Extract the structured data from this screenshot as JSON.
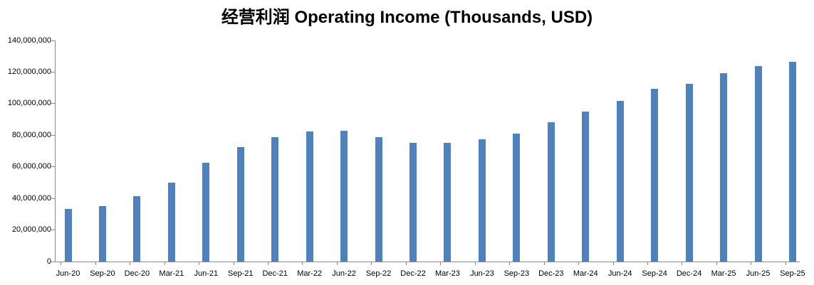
{
  "chart_data": {
    "type": "bar",
    "title": "经营利润 Operating Income (Thousands, USD)",
    "categories": [
      "Jun-20",
      "Sep-20",
      "Dec-20",
      "Mar-21",
      "Jun-21",
      "Sep-21",
      "Dec-21",
      "Mar-22",
      "Jun-22",
      "Sep-22",
      "Dec-22",
      "Mar-23",
      "Jun-23",
      "Sep-23",
      "Dec-23",
      "Mar-24",
      "Jun-24",
      "Sep-24",
      "Dec-24",
      "Mar-25",
      "Jun-25",
      "Sep-25"
    ],
    "values": [
      33100000,
      34900000,
      41400000,
      50000000,
      62600000,
      72400000,
      78700000,
      82300000,
      82800000,
      78700000,
      75300000,
      75000000,
      77400000,
      81200000,
      88300000,
      95000000,
      101700000,
      109300000,
      112600000,
      119500000,
      123600000,
      126700000
    ],
    "xlabel": "",
    "ylabel": "",
    "ylim": [
      0,
      140000000
    ],
    "y_tick_interval": 20000000,
    "y_tick_labels": [
      "0",
      "20,000,000",
      "40,000,000",
      "60,000,000",
      "80,000,000",
      "100,000,000",
      "120,000,000",
      "140,000,000"
    ],
    "grid": false,
    "legend_position": "none",
    "bar_color": "#4f81bd",
    "axis_color": "#8c8c8c",
    "title_color": "#000000",
    "label_color": "#000000",
    "background_color": "#ffffff"
  }
}
